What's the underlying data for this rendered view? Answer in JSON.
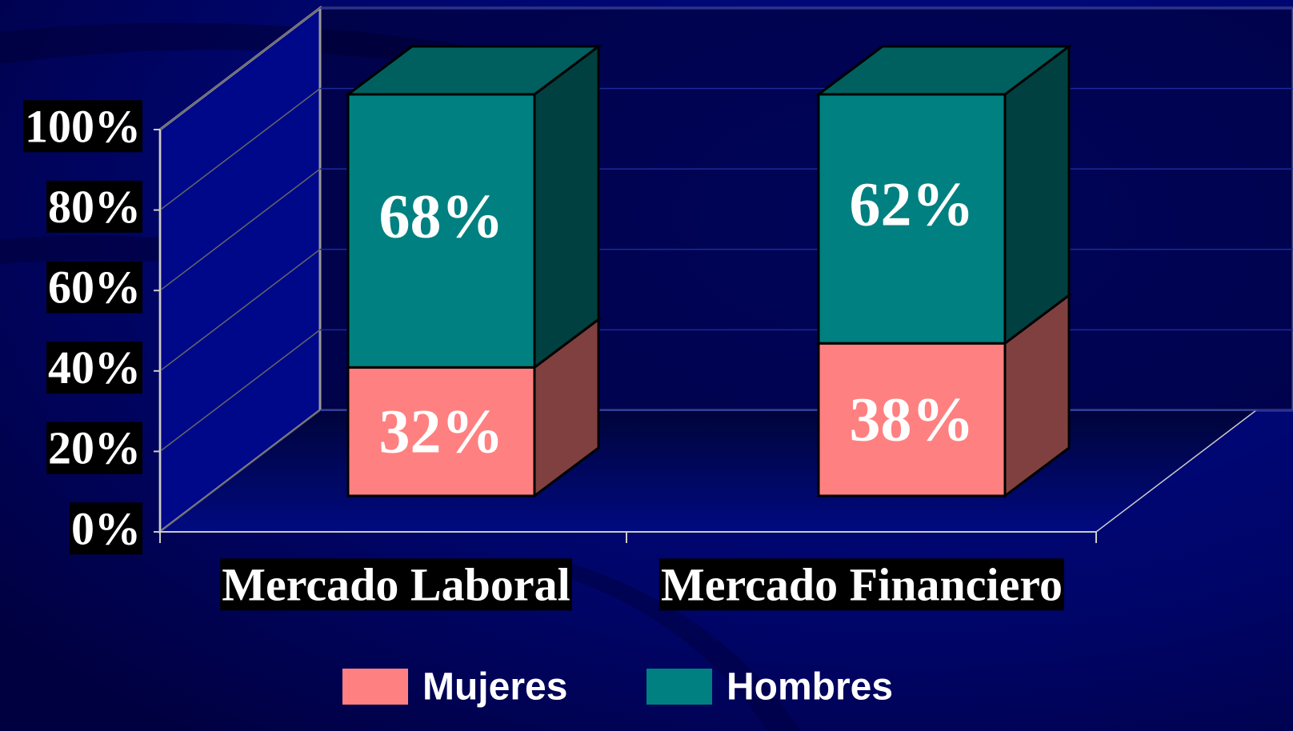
{
  "chart_data": {
    "type": "bar3d_stacked",
    "categories": [
      "Mercado Laboral",
      "Mercado Financiero"
    ],
    "series": [
      {
        "name": "Mujeres",
        "color": "#ff8080",
        "values": [
          32,
          38
        ],
        "value_labels": [
          "32%",
          "38%"
        ]
      },
      {
        "name": "Hombres",
        "color": "#008080",
        "values": [
          68,
          62
        ],
        "value_labels": [
          "68%",
          "62%"
        ]
      }
    ],
    "ylim": [
      0,
      100
    ],
    "yticks": [
      {
        "value": 0,
        "label": "0%"
      },
      {
        "value": 20,
        "label": "20%"
      },
      {
        "value": 40,
        "label": "40%"
      },
      {
        "value": 60,
        "label": "60%"
      },
      {
        "value": 80,
        "label": "80%"
      },
      {
        "value": 100,
        "label": "100%"
      }
    ],
    "grid": true,
    "legend": "bottom"
  }
}
